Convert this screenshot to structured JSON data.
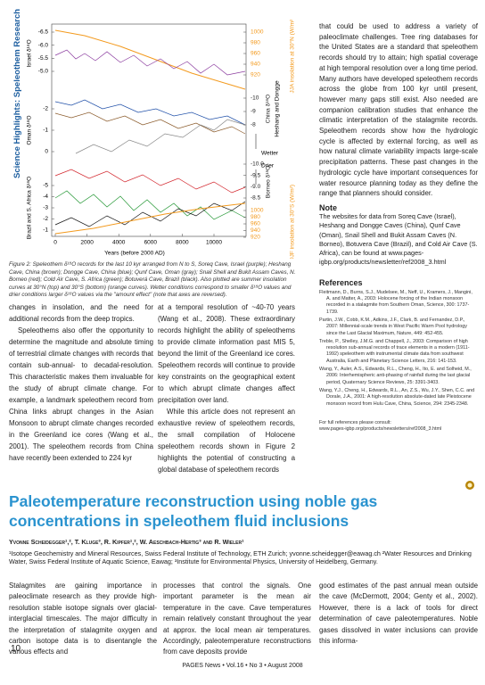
{
  "sidebar": "Science Highlights: Speleothem Research",
  "figure": {
    "left_axes": [
      {
        "label": "Israel δ¹⁸O",
        "ticks": [
          "-6.5",
          "-6.0",
          "-5.5",
          "-5.0"
        ]
      },
      {
        "label": "Oman δ¹⁸O",
        "ticks": [
          "-2",
          "-1",
          "0"
        ]
      },
      {
        "label": "Brazil and S. Africa δ¹⁸O",
        "ticks": [
          "-5",
          "-4",
          "-3",
          "-2",
          "-1"
        ]
      }
    ],
    "right_axes": [
      {
        "label": "JJA insolation at 30°N (W/m²)",
        "ticks": [
          "1000",
          "980",
          "960",
          "940",
          "920"
        ]
      },
      {
        "label": "China δ¹⁸O",
        "ticks": [
          "-10",
          "-9",
          "-8"
        ]
      },
      {
        "label": "Borneo δ¹⁸O",
        "ticks": [
          "-10.0",
          "-9.5",
          "-9.0",
          "-8.5"
        ]
      },
      {
        "label": "DJF insolation at 30°S (W/m²)",
        "ticks": [
          "1000",
          "980",
          "960",
          "940",
          "920"
        ]
      }
    ],
    "china_note": "Heshang and Dongge",
    "wetter": "Wetter",
    "drier": "Drier",
    "x_ticks": [
      "0",
      "2000",
      "4000",
      "6000",
      "8000",
      "10000"
    ],
    "x_label": "Years (before 2000 AD)"
  },
  "caption": "Figure 2: Speleothem δ¹⁸O records for the last 10 kyr arranged from N to S, Soreq Cave, Israel (purple); Heshang Cave, China (brown); Dongge Cave, China (blue); Qunf Cave, Oman (gray); Snail Shell and Bukit Assam Caves, N. Borneo (red); Cold Air Cave, S. Africa (green); Botuverá Cave, Brazil (black). Also plotted are summer insolation curves at 30°N (top) and 30°S (bottom) (orange curves). Wetter conditions correspond to smaller δ¹⁸O values and drier conditions larger δ¹⁸O values via the \"amount effect\" (note that axes are reversed).",
  "article1": {
    "col1": [
      "changes in insolation, and the need for additional records from the deep tropics.",
      "Speleothems also offer the opportunity to determine the magnitude and absolute timing of terrestrial climate changes with records that contain sub-annual- to decadal-resolution. This characteristic makes them invaluable for the study of abrupt climate change. For example, a landmark speleothem record from China links abrupt changes in the Asian Monsoon to abrupt climate changes recorded in the Greenland ice cores (Wang et al., 2001). The speleothem records from China have recently been extended to 224 kyr"
    ],
    "col2": [
      "at a temporal resolution of ~40-70 years (Wang et al., 2008). These extraordinary records highlight the ability of speleothems to provide climate information past MIS 5, beyond the limit of the Greenland ice cores. Speleothem records will continue to provide key constraints on the geographical extent to which abrupt climate changes affect precipitation over land.",
      "While this article does not represent an exhaustive review of speleothem records, the small compilation of Holocene speleothem records shown in Figure 2 highlights the potential of constructing a global database of speleothem records"
    ],
    "col3": [
      "that could be used to address a variety of paleoclimate challenges. Tree ring databases for the United States are a standard that speleothem records should try to attain; high spatial coverage at high temporal resolution over a long time period. Many authors have developed speleothem records across the globe from 100 kyr until present, however many gaps still exist. Also needed are companion calibration studies that enhance the climatic interpretation of the stalagmite records. Speleothem records show how the hydrologic cycle is affected by external forcing, as well as how natural climate variability impacts large-scale precipitation patterns. These past changes in the hydrologic cycle have important consequences for water resource planning today as they define the range that planners should consider."
    ],
    "note_heading": "Note",
    "note": "The websites for data from Soreq Cave (Israel), Heshang and Dongge Caves (China), Qunf Cave (Oman), Snail Shell and Bukit Assam Caves (N. Borneo), Botuvera Cave (Brazil), and Cold Air Cave (S. Africa), can be found at www.pages-igbp.org/products/newsletter/ref2008_3.html",
    "references_heading": "References",
    "references": [
      "Fleitmann, D., Burns, S.J., Mudelsee, M., Neff, U., Kramers, J., Mangini, A. and Matter, A., 2003: Holocene forcing of the Indian monsoon recorded in a stalagmite from Southern Oman, Science, 300: 1737-1739.",
      "Partin, J.W., Cobb, K.M., Adkins, J.F., Clark, B. and Fernandez, D.P., 2007: Millennial-scale trends in West Pacific Warm Pool hydrology since the Last Glacial Maximum, Nature, 449: 452-455.",
      "Treble, P., Shelley, J.M.G. and Chappell, J., 2003: Comparison of high resolution sub-annual records of trace elements in a modern (1911-1992) speleothem with instrumental climate data from southwest Australia, Earth and Planetary Science Letters, 216: 141-153.",
      "Wang, Y., Auler, A.S., Edwards, R.L., Cheng, H., Ito, E. and Solheid, M., 2006: Interhemispheric anti-phasing of rainfall during the last glacial period, Quaternary Science Reviews, 25: 3391-3403.",
      "Wang, Y.J., Cheng, H., Edwards, R.L., An, Z.S., Wu, J.Y., Shen, C.C. and Dorale, J.A., 2001: A high-resolution absolute-dated late Pleistocene monsoon record from Hulu Cave, China, Science, 294: 2345-2348."
    ],
    "full_refs": "For full references please consult:",
    "full_refs_url": "www.pages-igbp.org/products/newsletters/ref2008_3.html"
  },
  "article2": {
    "title": "Paleotemperature reconstruction using noble gas concentrations in speleothem fluid inclusions",
    "authors": "Yvonne Scheidegger¹,², T. Kluge³, R. Kipfer¹,², W. Aeschbach-Hertig³ and R. Wieler¹",
    "affiliations": "¹Isotope Geochemistry and Mineral Resources, Swiss Federal Institute of Technology, ETH Zurich; yvonne.scheidegger@eawag.ch ²Water Resources and Drinking Water, Swiss Federal Institute of Aquatic Science, Eawag; ³Institute for Environmental Physics, University of Heidelberg, Germany.",
    "col1": "Stalagmites are gaining importance in paleoclimate research as they provide high-resolution stable isotope signals over glacial-interglacial timescales. The major difficulty in the interpretation of stalagmite oxygen and carbon isotope data is to disentangle the various effects and",
    "col2": "processes that control the signals. One important parameter is the mean air temperature in the cave. Cave temperatures remain relatively constant throughout the year at approx. the local mean air temperatures. Accordingly, paleotemperature reconstructions from cave deposits provide",
    "col3": "good estimates of the past annual mean outside the cave (McDermott, 2004; Genty et al., 2002). However, there is a lack of tools for direct determination of cave paleotemperatures. Noble gases dissolved in water inclusions can provide this informa-"
  },
  "page_number": "10",
  "footer": "PAGES News • Vol.16 • No 3 • August 2008"
}
